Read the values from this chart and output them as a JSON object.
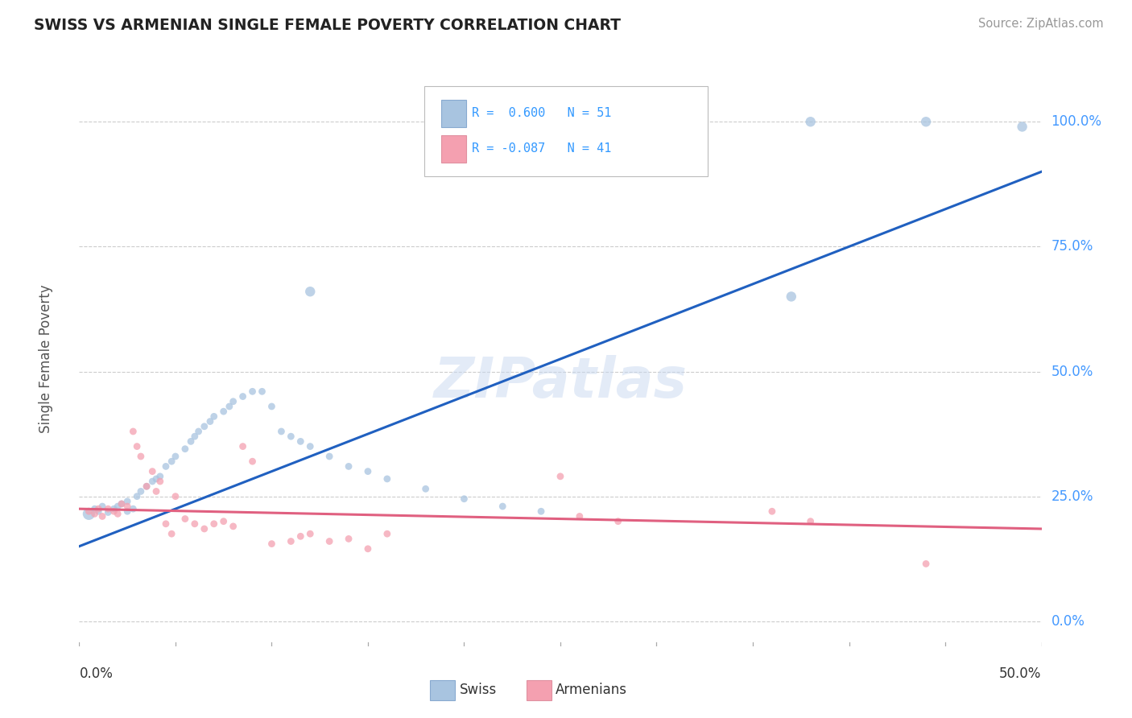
{
  "title": "SWISS VS ARMENIAN SINGLE FEMALE POVERTY CORRELATION CHART",
  "source": "Source: ZipAtlas.com",
  "ylabel": "Single Female Poverty",
  "ytick_values": [
    0.0,
    0.25,
    0.5,
    0.75,
    1.0
  ],
  "xlim": [
    0.0,
    0.5
  ],
  "ylim": [
    -0.05,
    1.1
  ],
  "legend_swiss_R": "0.600",
  "legend_swiss_N": "51",
  "legend_armenian_R": "-0.087",
  "legend_armenian_N": "41",
  "swiss_color": "#a8c4e0",
  "armenian_color": "#f4a0b0",
  "swiss_line_color": "#2060c0",
  "armenian_line_color": "#e06080",
  "background_color": "#ffffff",
  "watermark": "ZIPatlas",
  "swiss_scatter": [
    [
      0.005,
      0.215
    ],
    [
      0.008,
      0.225
    ],
    [
      0.01,
      0.22
    ],
    [
      0.012,
      0.23
    ],
    [
      0.015,
      0.218
    ],
    [
      0.018,
      0.225
    ],
    [
      0.02,
      0.23
    ],
    [
      0.022,
      0.235
    ],
    [
      0.025,
      0.24
    ],
    [
      0.025,
      0.22
    ],
    [
      0.028,
      0.225
    ],
    [
      0.03,
      0.25
    ],
    [
      0.032,
      0.26
    ],
    [
      0.035,
      0.27
    ],
    [
      0.038,
      0.28
    ],
    [
      0.04,
      0.285
    ],
    [
      0.042,
      0.29
    ],
    [
      0.045,
      0.31
    ],
    [
      0.048,
      0.32
    ],
    [
      0.05,
      0.33
    ],
    [
      0.055,
      0.345
    ],
    [
      0.058,
      0.36
    ],
    [
      0.06,
      0.37
    ],
    [
      0.062,
      0.38
    ],
    [
      0.065,
      0.39
    ],
    [
      0.068,
      0.4
    ],
    [
      0.07,
      0.41
    ],
    [
      0.075,
      0.42
    ],
    [
      0.078,
      0.43
    ],
    [
      0.08,
      0.44
    ],
    [
      0.085,
      0.45
    ],
    [
      0.09,
      0.46
    ],
    [
      0.095,
      0.46
    ],
    [
      0.1,
      0.43
    ],
    [
      0.105,
      0.38
    ],
    [
      0.11,
      0.37
    ],
    [
      0.115,
      0.36
    ],
    [
      0.12,
      0.35
    ],
    [
      0.13,
      0.33
    ],
    [
      0.14,
      0.31
    ],
    [
      0.15,
      0.3
    ],
    [
      0.16,
      0.285
    ],
    [
      0.18,
      0.265
    ],
    [
      0.2,
      0.245
    ],
    [
      0.22,
      0.23
    ],
    [
      0.24,
      0.22
    ],
    [
      0.37,
      0.65
    ],
    [
      0.38,
      1.0
    ],
    [
      0.44,
      1.0
    ],
    [
      0.49,
      0.99
    ],
    [
      0.12,
      0.66
    ]
  ],
  "armenian_scatter": [
    [
      0.005,
      0.22
    ],
    [
      0.008,
      0.215
    ],
    [
      0.01,
      0.225
    ],
    [
      0.012,
      0.21
    ],
    [
      0.015,
      0.225
    ],
    [
      0.018,
      0.22
    ],
    [
      0.02,
      0.215
    ],
    [
      0.022,
      0.235
    ],
    [
      0.025,
      0.23
    ],
    [
      0.028,
      0.38
    ],
    [
      0.03,
      0.35
    ],
    [
      0.032,
      0.33
    ],
    [
      0.035,
      0.27
    ],
    [
      0.038,
      0.3
    ],
    [
      0.04,
      0.26
    ],
    [
      0.042,
      0.28
    ],
    [
      0.045,
      0.195
    ],
    [
      0.048,
      0.175
    ],
    [
      0.05,
      0.25
    ],
    [
      0.055,
      0.205
    ],
    [
      0.06,
      0.195
    ],
    [
      0.065,
      0.185
    ],
    [
      0.07,
      0.195
    ],
    [
      0.075,
      0.2
    ],
    [
      0.08,
      0.19
    ],
    [
      0.085,
      0.35
    ],
    [
      0.09,
      0.32
    ],
    [
      0.1,
      0.155
    ],
    [
      0.11,
      0.16
    ],
    [
      0.115,
      0.17
    ],
    [
      0.12,
      0.175
    ],
    [
      0.13,
      0.16
    ],
    [
      0.14,
      0.165
    ],
    [
      0.15,
      0.145
    ],
    [
      0.16,
      0.175
    ],
    [
      0.25,
      0.29
    ],
    [
      0.26,
      0.21
    ],
    [
      0.28,
      0.2
    ],
    [
      0.36,
      0.22
    ],
    [
      0.38,
      0.2
    ],
    [
      0.44,
      0.115
    ]
  ],
  "swiss_bubble_sizes": [
    120,
    40,
    40,
    40,
    40,
    40,
    40,
    40,
    40,
    40,
    40,
    40,
    40,
    40,
    40,
    40,
    40,
    40,
    40,
    40,
    40,
    40,
    40,
    40,
    40,
    40,
    40,
    40,
    40,
    40,
    40,
    40,
    40,
    40,
    40,
    40,
    40,
    40,
    40,
    40,
    40,
    40,
    40,
    40,
    40,
    40,
    80,
    80,
    80,
    80,
    80
  ],
  "armenian_bubble_sizes": [
    40,
    40,
    40,
    40,
    40,
    40,
    40,
    40,
    40,
    40,
    40,
    40,
    40,
    40,
    40,
    40,
    40,
    40,
    40,
    40,
    40,
    40,
    40,
    40,
    40,
    40,
    40,
    40,
    40,
    40,
    40,
    40,
    40,
    40,
    40,
    40,
    40,
    40,
    40,
    40,
    40
  ]
}
